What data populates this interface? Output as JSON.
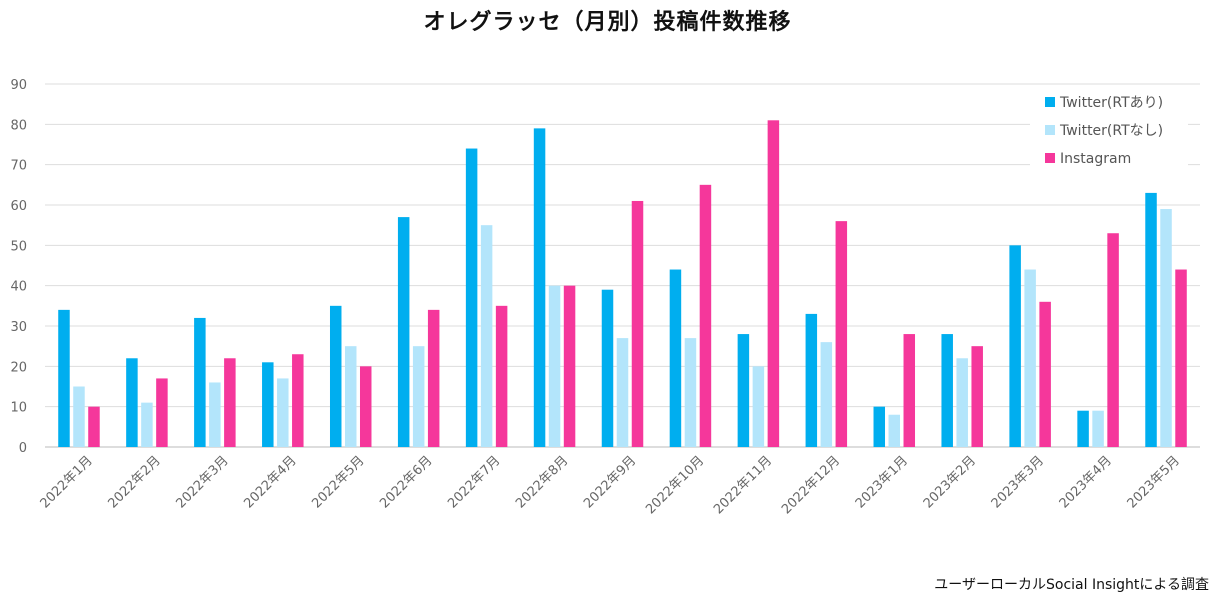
{
  "chart_data": {
    "type": "bar",
    "title": "オレグラッセ（月別）投稿件数推移",
    "categories": [
      "2022年1月",
      "2022年2月",
      "2022年3月",
      "2022年4月",
      "2022年5月",
      "2022年6月",
      "2022年7月",
      "2022年8月",
      "2022年9月",
      "2022年10月",
      "2022年11月",
      "2022年12月",
      "2023年1月",
      "2023年2月",
      "2023年3月",
      "2023年4月",
      "2023年5月"
    ],
    "series": [
      {
        "name": "Twitter(RTあり)",
        "color": "#00aeef",
        "values": [
          34,
          22,
          32,
          21,
          35,
          57,
          74,
          79,
          39,
          44,
          28,
          33,
          10,
          28,
          50,
          9,
          63
        ]
      },
      {
        "name": "Twitter(RTなし)",
        "color": "#b3e5fb",
        "values": [
          15,
          11,
          16,
          17,
          25,
          25,
          55,
          40,
          27,
          27,
          20,
          26,
          8,
          22,
          44,
          9,
          59
        ]
      },
      {
        "name": "Instagram",
        "color": "#f5379b",
        "values": [
          10,
          17,
          22,
          23,
          20,
          34,
          35,
          40,
          61,
          65,
          81,
          56,
          28,
          25,
          36,
          53,
          44
        ]
      }
    ],
    "ylim": [
      0,
      90
    ],
    "yticks": [
      0,
      10,
      20,
      30,
      40,
      50,
      60,
      70,
      80,
      90
    ],
    "grid": true,
    "legend": "top-right"
  },
  "source_note": "ユーザーローカルSocial Insightによる調査"
}
